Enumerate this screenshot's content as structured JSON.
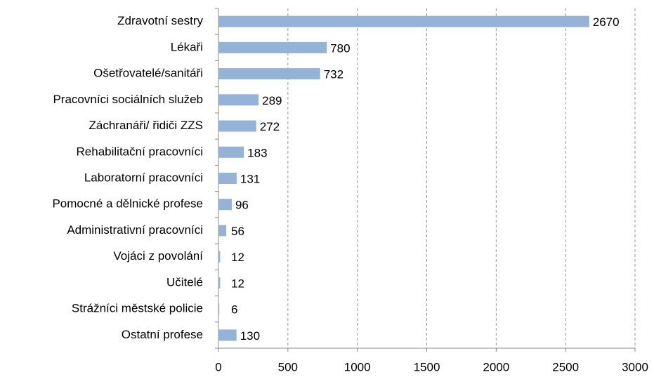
{
  "chart_data": {
    "type": "bar",
    "orientation": "horizontal",
    "categories": [
      "Zdravotní sestry",
      "Lékaři",
      "Ošetřovatelé/sanitáři",
      "Pracovníci sociálních služeb",
      "Záchranáři/ řidiči ZZS",
      "Rehabilitační pracovníci",
      "Laboratorní pracovníci",
      "Pomocné a dělnické profese",
      "Administrativní pracovníci",
      "Vojáci z povolání",
      "Učitelé",
      "Strážníci městské policie",
      "Ostatní profese"
    ],
    "values": [
      2670,
      780,
      732,
      289,
      272,
      183,
      131,
      96,
      56,
      12,
      12,
      6,
      130
    ],
    "color": "#95b3d7",
    "xlim": [
      0,
      3000
    ],
    "xticks": [
      0,
      500,
      1000,
      1500,
      2000,
      2500,
      3000
    ],
    "grid": true
  }
}
